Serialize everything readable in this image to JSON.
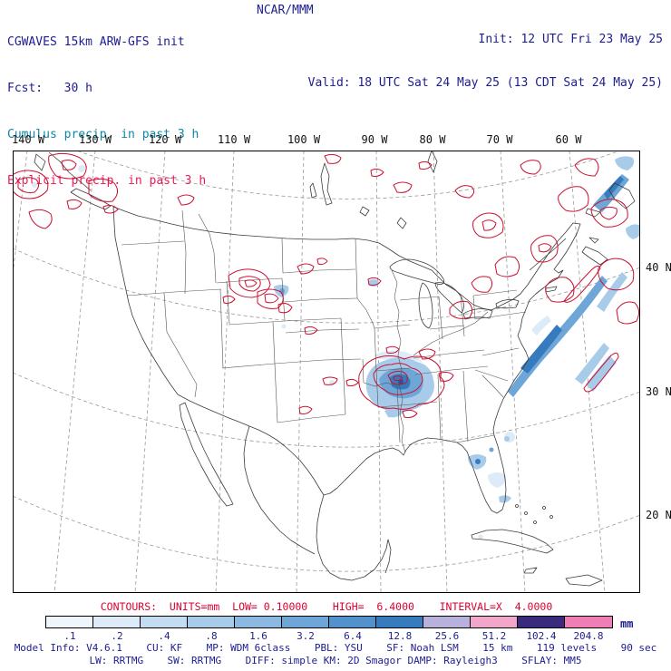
{
  "header": {
    "model_title": "CGWAVES 15km ARW-GFS init",
    "fcst_label": "Fcst:   30 h",
    "field_cumulus": "Cumulus precip. in past 3 h",
    "field_explicit": "Explicit precip. in past 3 h",
    "org": "NCAR/MMM",
    "init_time": "Init: 12 UTC Fri 23 May 25",
    "valid_time": "Valid: 18 UTC Sat 24 May 25 (13 CDT Sat 24 May 25)"
  },
  "map": {
    "lon_labels": [
      "140 W",
      "130 W",
      "120 W",
      "110 W",
      "100 W",
      "90 W",
      "80 W",
      "70 W",
      "60 W"
    ],
    "lat_labels": [
      "40 N",
      "30 N",
      "20 N"
    ]
  },
  "legend": {
    "contours_text": "CONTOURS:  UNITS=mm  LOW= 0.10000    HIGH=  6.4000    INTERVAL=X  4.0000",
    "colorbar": {
      "tick_labels": [
        ".1",
        ".2",
        ".4",
        ".8",
        "1.6",
        "3.2",
        "6.4",
        "12.8",
        "25.6",
        "51.2",
        "102.4",
        "204.8"
      ],
      "unit": "mm",
      "colors": [
        "#eef5fb",
        "#dcebf7",
        "#c4dcf1",
        "#a9cbea",
        "#8cb9e2",
        "#6ea6d8",
        "#5292cc",
        "#367bbe",
        "#b7b1dc",
        "#f2a6ca",
        "#392a7e",
        "#ee7fb5"
      ]
    }
  },
  "footer": {
    "line1": "Model Info: V4.6.1    CU: KF    MP: WDM 6class    PBL: YSU    SF: Noah LSM    15 km    119 levels    90 sec",
    "line2": "LW: RRTMG    SW: RRTMG    DIFF: simple KM: 2D Smagor DAMP: Rayleigh3    SFLAY: MM5"
  },
  "colors": {
    "title_navy": "#1d1d8f",
    "cumulus_label": "#0f86a8",
    "explicit_label": "#ef1a56",
    "contour_red": "#cc1030",
    "legend_red": "#e00030",
    "graticule_gray": "#999999",
    "coastline_gray": "#3c3c3c"
  }
}
